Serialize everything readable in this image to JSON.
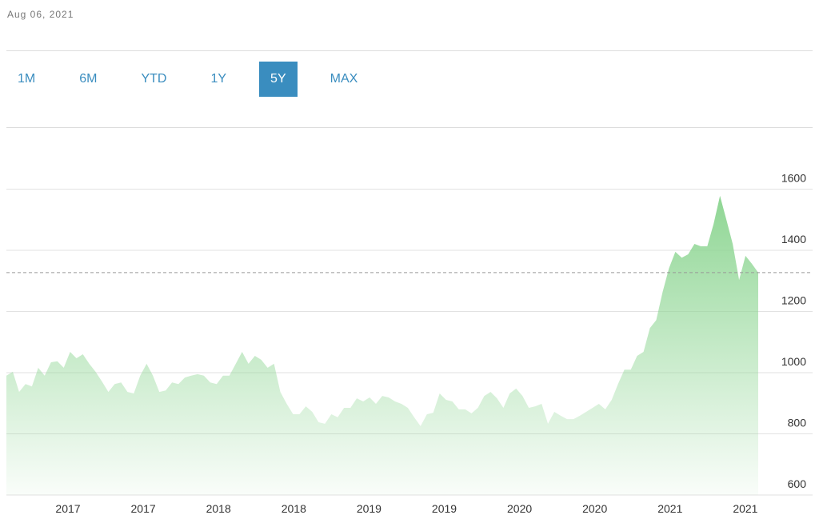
{
  "header": {
    "date": "Aug 06, 2021"
  },
  "range_buttons": {
    "options": [
      "1M",
      "6M",
      "YTD",
      "1Y",
      "5Y",
      "MAX"
    ],
    "selected_index": 4
  },
  "chart_data": {
    "type": "area",
    "color": "#8fd694",
    "xtick_labels": [
      "2017",
      "2017",
      "2018",
      "2018",
      "2019",
      "2019",
      "2020",
      "2020",
      "2021",
      "2021"
    ],
    "values": [
      990,
      1003,
      937,
      963,
      955,
      1016,
      990,
      1034,
      1037,
      1016,
      1068,
      1047,
      1060,
      1029,
      1003,
      971,
      937,
      963,
      968,
      937,
      932,
      990,
      1029,
      990,
      937,
      942,
      968,
      963,
      984,
      990,
      995,
      990,
      968,
      963,
      990,
      990,
      1029,
      1068,
      1029,
      1055,
      1042,
      1016,
      1029,
      937,
      898,
      864,
      864,
      890,
      872,
      838,
      833,
      864,
      854,
      885,
      885,
      916,
      906,
      919,
      898,
      924,
      919,
      906,
      898,
      885,
      854,
      825,
      864,
      869,
      932,
      911,
      906,
      880,
      880,
      867,
      885,
      924,
      937,
      916,
      885,
      932,
      948,
      924,
      885,
      890,
      898,
      833,
      872,
      859,
      848,
      848,
      859,
      872,
      885,
      898,
      880,
      911,
      963,
      1010,
      1010,
      1055,
      1068,
      1146,
      1172,
      1264,
      1342,
      1395,
      1376,
      1387,
      1421,
      1413,
      1413,
      1486,
      1578,
      1500,
      1421,
      1303,
      1382,
      1356,
      1327
    ],
    "ylim": [
      600,
      1800
    ],
    "yticks": [
      600,
      800,
      1000,
      1200,
      1400,
      1600
    ],
    "grid": true,
    "reference_line": 1327
  }
}
